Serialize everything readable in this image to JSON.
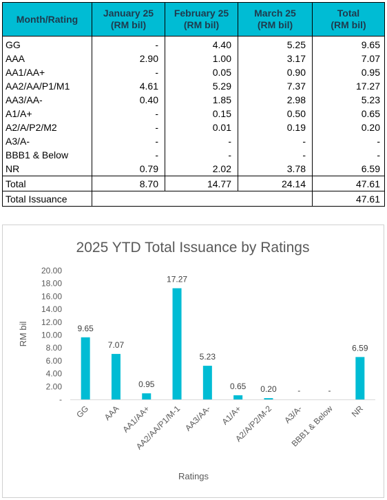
{
  "table": {
    "headers": [
      {
        "line1": "Month/Rating",
        "line2": ""
      },
      {
        "line1": "January 25",
        "line2": "(RM bil)"
      },
      {
        "line1": "February 25",
        "line2": "(RM bil)"
      },
      {
        "line1": "March 25",
        "line2": "(RM bil)"
      },
      {
        "line1": "Total",
        "line2": "(RM bil)"
      }
    ],
    "rows": [
      [
        "GG",
        "-",
        "4.40",
        "5.25",
        "9.65"
      ],
      [
        "AAA",
        "2.90",
        "1.00",
        "3.17",
        "7.07"
      ],
      [
        "AA1/AA+",
        "-",
        "0.05",
        "0.90",
        "0.95"
      ],
      [
        "AA2/AA/P1/M1",
        "4.61",
        "5.29",
        "7.37",
        "17.27"
      ],
      [
        "AA3/AA-",
        "0.40",
        "1.85",
        "2.98",
        "5.23"
      ],
      [
        "A1/A+",
        "-",
        "0.15",
        "0.50",
        "0.65"
      ],
      [
        "A2/A/P2/M2",
        "-",
        "0.01",
        "0.19",
        "0.20"
      ],
      [
        "A3/A-",
        "-",
        "-",
        "-",
        "-"
      ],
      [
        "BBB1 & Below",
        "-",
        "-",
        "-",
        "-"
      ],
      [
        "NR",
        "0.79",
        "2.02",
        "3.78",
        "6.59"
      ]
    ],
    "total_row": [
      "Total",
      "8.70",
      "14.77",
      "24.14",
      "47.61"
    ],
    "issuance_row": {
      "label": "Total Issuance",
      "value": "47.61"
    },
    "header_color": "#00bcd4"
  },
  "chart_data": {
    "type": "bar",
    "title": "2025 YTD Total Issuance by Ratings",
    "xlabel": "Ratings",
    "ylabel": "RM bil",
    "ylim": [
      0,
      20
    ],
    "yticks": [
      "-",
      "2.00",
      "4.00",
      "6.00",
      "8.00",
      "10.00",
      "12.00",
      "14.00",
      "16.00",
      "18.00",
      "20.00"
    ],
    "categories": [
      "GG",
      "AAA",
      "AA1/AA+",
      "AA2/AA/P1/M-1",
      "AA3/AA-",
      "A1/A+",
      "A2/A/P2/M-2",
      "A3/A-",
      "BBB1 & Below",
      "NR"
    ],
    "values": [
      9.65,
      7.07,
      0.95,
      17.27,
      5.23,
      0.65,
      0.2,
      0,
      0,
      6.59
    ],
    "data_labels": [
      "9.65",
      "7.07",
      "0.95",
      "17.27",
      "5.23",
      "0.65",
      "0.20",
      "-",
      "-",
      "6.59"
    ],
    "bar_color": "#00bcd4",
    "grid": false
  }
}
